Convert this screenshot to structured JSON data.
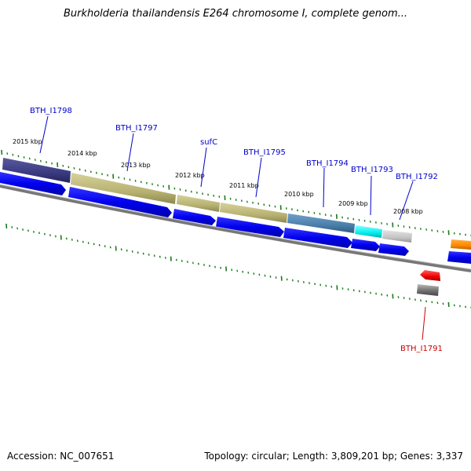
{
  "title": "Burkholderia thailandensis E264 chromosome I, complete genom...",
  "footer": {
    "accession": "Accession: NC_007651",
    "summary": "Topology: circular; Length: 3,809,201 bp; Genes: 3,337"
  },
  "colors": {
    "label_blue": "#0000cc",
    "label_red": "#cc0000",
    "gene_blue": "#0000ee",
    "tick_green": "#1a7a1a",
    "backbone_gray": "#777777"
  },
  "ruler": {
    "labels": [
      "2015 kbp",
      "2014 kbp",
      "2013 kbp",
      "2012 kbp",
      "2011 kbp",
      "2010 kbp",
      "2009 kbp",
      "2008 kbp"
    ]
  },
  "gene_labels": [
    {
      "name": "BTH_I1798",
      "color": "blue"
    },
    {
      "name": "BTH_I1797",
      "color": "blue"
    },
    {
      "name": "sufC",
      "color": "blue"
    },
    {
      "name": "BTH_I1795",
      "color": "blue"
    },
    {
      "name": "BTH_I1794",
      "color": "blue"
    },
    {
      "name": "BTH_I1793",
      "color": "blue"
    },
    {
      "name": "BTH_I1792",
      "color": "blue"
    },
    {
      "name": "BTH_I1791",
      "color": "red"
    }
  ]
}
